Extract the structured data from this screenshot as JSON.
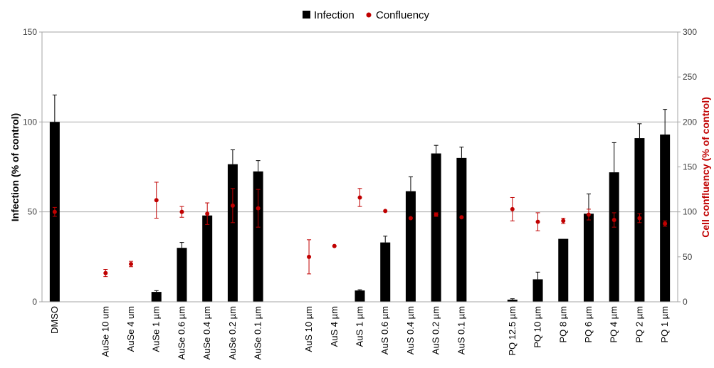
{
  "chart_data": {
    "type": "bar",
    "categories": [
      "DMSO",
      "",
      "AuSe 10 um",
      "AuSe 4 um",
      "AuSe 1 µm",
      "AuSe 0.6 µm",
      "AuSe 0.4 µm",
      "AuSe 0.2 µm",
      "AuSe 0.1 µm",
      "",
      "AuS 10 µm",
      "AuS 4 µm",
      "AuS 1 µm",
      "AuS 0.6 µm",
      "AuS 0.4 µm",
      "AuS 0.2 µm",
      "AuS 0.1 µm",
      "",
      "PQ 12.5 µm",
      "PQ 10 µm",
      "PQ 8 µm",
      "PQ 6 µm",
      "PQ 4 µm",
      "PQ 2 µm",
      "PQ 1 µm"
    ],
    "series": [
      {
        "name": "Infection",
        "type": "bar",
        "axis": "left",
        "color": "#000000",
        "values": [
          100,
          null,
          0,
          0,
          5.5,
          30,
          48,
          76.5,
          72.5,
          null,
          0,
          0,
          6.3,
          33,
          61.5,
          82.5,
          80,
          null,
          1.2,
          12.5,
          35,
          49,
          72,
          91,
          93
        ],
        "error": [
          15,
          null,
          0,
          0,
          0.7,
          3,
          0,
          8,
          6,
          null,
          0,
          0,
          0.4,
          3.5,
          8,
          4.5,
          6,
          null,
          0.5,
          4,
          0,
          11,
          16.5,
          8,
          14
        ]
      },
      {
        "name": "Confluency",
        "type": "scatter",
        "axis": "right",
        "color": "#c00000",
        "values": [
          100,
          null,
          32,
          42,
          113,
          100,
          98,
          107,
          104,
          null,
          50,
          62,
          116,
          101,
          93,
          97,
          94,
          null,
          103,
          89,
          90,
          97,
          91,
          93,
          87
        ],
        "error": [
          5,
          null,
          4,
          3,
          20,
          6,
          12,
          19,
          21,
          null,
          19,
          0,
          10,
          0,
          0,
          2,
          0,
          null,
          13,
          10,
          3,
          6,
          8,
          5,
          3
        ]
      }
    ],
    "y_left": {
      "label": "Infection (% of control)",
      "range": [
        0,
        150
      ],
      "ticks": [
        0,
        50,
        100,
        150
      ]
    },
    "y_right": {
      "label": "Cell confluency (% of control)",
      "range": [
        0,
        300
      ],
      "ticks": [
        0,
        50,
        100,
        150,
        200,
        250,
        300
      ]
    },
    "gridlines": [
      50,
      100
    ],
    "legend": {
      "position": "top-center",
      "entries": [
        "Infection",
        "Confluency"
      ]
    }
  }
}
